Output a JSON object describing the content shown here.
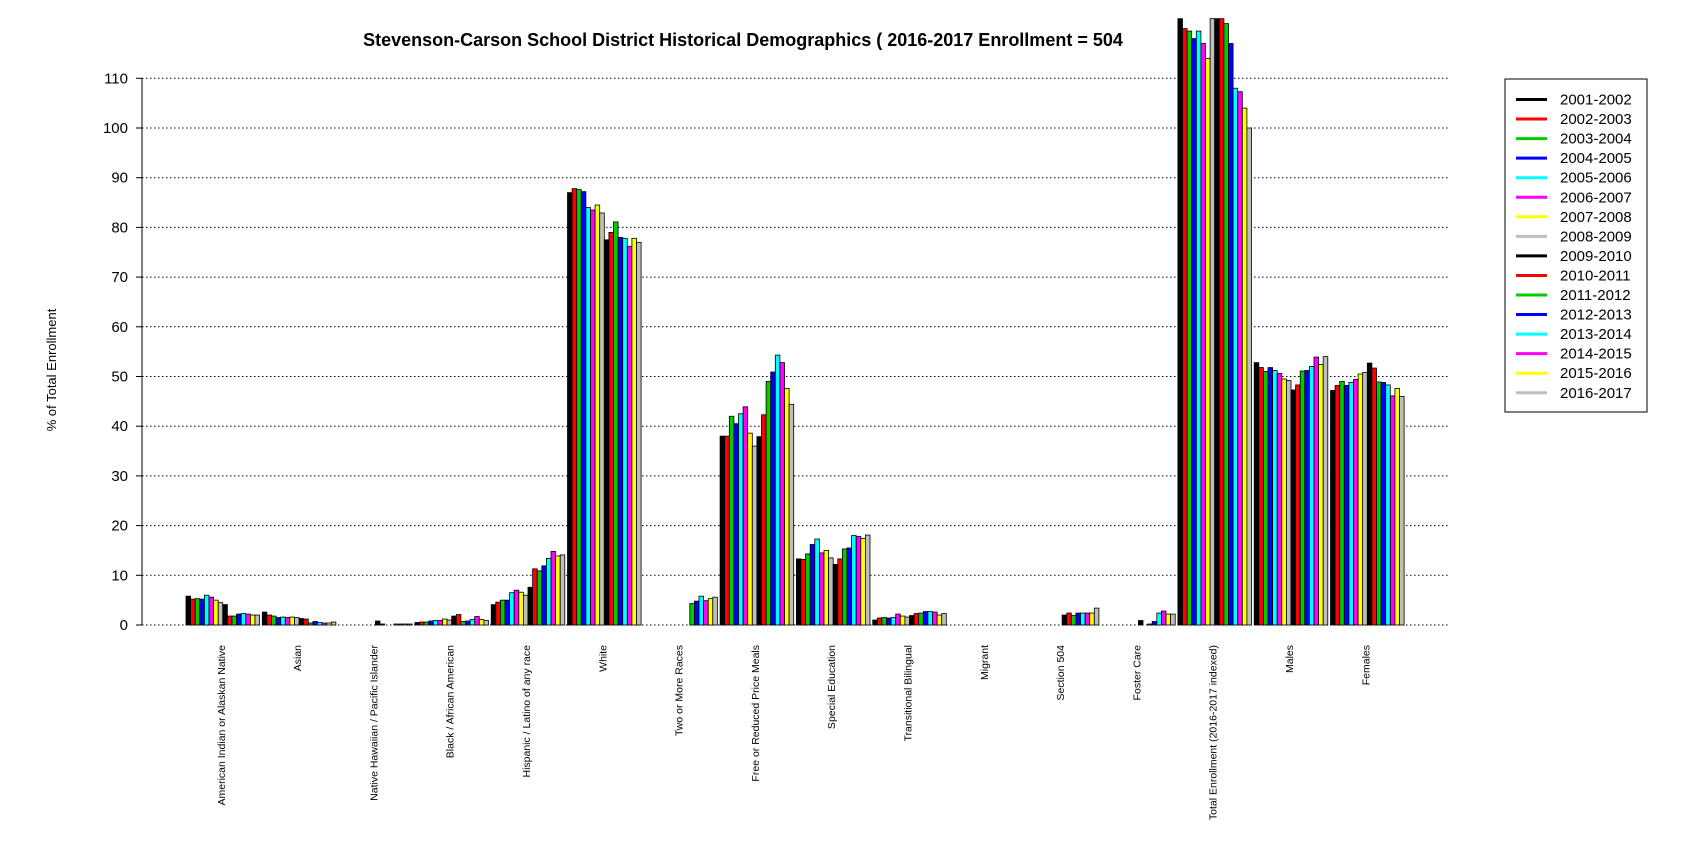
{
  "chart_data": {
    "type": "bar",
    "title": "Stevenson-Carson School District Historical Demographics  ( 2016-2017 Enrollment =  504",
    "xlabel": "",
    "ylabel": "% of Total Enrollment",
    "ylim": [
      0,
      122
    ],
    "yticks": [
      0,
      10,
      20,
      30,
      40,
      50,
      60,
      70,
      80,
      90,
      100,
      110
    ],
    "grid": "horizontal dotted",
    "legend_position": "right",
    "categories": [
      "American Indian or Alaskan Native",
      "Asian",
      "Native Hawaiian / Pacific Islander",
      "Black / African American",
      "Hispanic / Latino of any race",
      "White",
      "Two or More Races",
      "Free or Reduced Price Meals",
      "Special Education",
      "Transitional Bilingual",
      "Migrant",
      "Section 504",
      "Foster Care",
      "Total Enrollment (2016-2017 indexed)",
      "Males",
      "Females"
    ],
    "series": [
      {
        "name": "2001-2002",
        "color": "#000000",
        "values": [
          5.8,
          2.6,
          0.0,
          0.5,
          4.1,
          87.0,
          0.0,
          38.0,
          13.3,
          1.0,
          0.0,
          0.0,
          0.0,
          122.0,
          52.8,
          47.2
        ]
      },
      {
        "name": "2002-2003",
        "color": "#ff0000",
        "values": [
          5.2,
          2.0,
          0.0,
          0.6,
          4.6,
          87.8,
          0.0,
          38.0,
          13.2,
          1.4,
          0.0,
          0.0,
          0.0,
          120.0,
          51.8,
          48.2
        ]
      },
      {
        "name": "2003-2004",
        "color": "#00cc00",
        "values": [
          5.3,
          1.8,
          0.0,
          0.6,
          5.0,
          87.6,
          0.0,
          42.0,
          14.3,
          1.5,
          0.0,
          0.0,
          0.0,
          119.5,
          51.0,
          49.0
        ]
      },
      {
        "name": "2004-2005",
        "color": "#0000ff",
        "values": [
          5.2,
          1.5,
          0.0,
          0.8,
          5.0,
          87.2,
          0.0,
          40.5,
          16.2,
          1.4,
          0.0,
          0.0,
          0.0,
          118.0,
          51.8,
          48.2
        ]
      },
      {
        "name": "2005-2006",
        "color": "#00ffff",
        "values": [
          6.0,
          1.6,
          0.0,
          0.9,
          6.5,
          84.0,
          0.0,
          42.5,
          17.3,
          1.5,
          0.0,
          0.0,
          0.0,
          119.5,
          51.2,
          48.8
        ]
      },
      {
        "name": "2006-2007",
        "color": "#ff00ff",
        "values": [
          5.6,
          1.5,
          0.0,
          0.9,
          7.0,
          83.5,
          0.0,
          43.9,
          14.5,
          2.2,
          0.0,
          0.0,
          0.0,
          117.0,
          50.6,
          49.4
        ]
      },
      {
        "name": "2007-2008",
        "color": "#ffff00",
        "values": [
          5.0,
          1.6,
          0.0,
          1.2,
          6.6,
          84.5,
          0.0,
          38.6,
          15.0,
          1.8,
          0.0,
          0.0,
          0.0,
          114.0,
          49.5,
          50.5
        ]
      },
      {
        "name": "2008-2009",
        "color": "#bebebe",
        "values": [
          4.5,
          1.5,
          0.0,
          1.0,
          6.0,
          82.9,
          0.0,
          36.0,
          13.5,
          1.6,
          0.0,
          0.0,
          0.0,
          122.0,
          49.2,
          50.8
        ]
      },
      {
        "name": "2009-2010",
        "color": "#000000",
        "values": [
          4.1,
          1.3,
          0.8,
          1.8,
          7.6,
          77.5,
          0.0,
          37.9,
          12.2,
          1.9,
          0.0,
          2.0,
          0.9,
          122.0,
          47.3,
          52.7
        ]
      },
      {
        "name": "2010-2011",
        "color": "#ff0000",
        "values": [
          1.8,
          1.2,
          0.2,
          2.1,
          11.3,
          79.0,
          0.0,
          42.3,
          13.3,
          2.3,
          0.0,
          2.4,
          0.0,
          122.0,
          48.3,
          51.7
        ]
      },
      {
        "name": "2011-2012",
        "color": "#00cc00",
        "values": [
          1.8,
          0.4,
          0.0,
          0.7,
          10.9,
          81.1,
          4.3,
          49.0,
          15.3,
          2.4,
          0.0,
          1.9,
          0.2,
          121.0,
          51.1,
          48.9
        ]
      },
      {
        "name": "2012-2013",
        "color": "#0000ff",
        "values": [
          2.2,
          0.7,
          0.0,
          0.8,
          11.9,
          78.0,
          4.8,
          50.9,
          15.5,
          2.7,
          0.0,
          2.4,
          0.7,
          117.0,
          51.2,
          48.8
        ]
      },
      {
        "name": "2013-2014",
        "color": "#00ffff",
        "values": [
          2.3,
          0.5,
          0.2,
          1.1,
          13.4,
          77.8,
          5.8,
          54.3,
          18.0,
          2.7,
          0.0,
          2.4,
          2.4,
          108.0,
          52.0,
          48.3
        ]
      },
      {
        "name": "2014-2015",
        "color": "#ff00ff",
        "values": [
          2.2,
          0.4,
          0.2,
          1.7,
          14.8,
          76.2,
          4.9,
          52.8,
          17.8,
          2.6,
          0.0,
          2.4,
          2.8,
          107.3,
          53.9,
          46.1
        ]
      },
      {
        "name": "2015-2016",
        "color": "#ffff00",
        "values": [
          2.0,
          0.4,
          0.2,
          1.1,
          13.9,
          77.8,
          5.3,
          47.6,
          17.4,
          2.0,
          0.0,
          2.4,
          2.2,
          104.0,
          52.4,
          47.6
        ]
      },
      {
        "name": "2016-2017",
        "color": "#bebebe",
        "values": [
          2.0,
          0.6,
          0.2,
          0.9,
          14.1,
          77.0,
          5.6,
          44.4,
          18.1,
          2.3,
          0.0,
          3.4,
          2.2,
          100.0,
          54.0,
          46.0
        ]
      }
    ]
  }
}
